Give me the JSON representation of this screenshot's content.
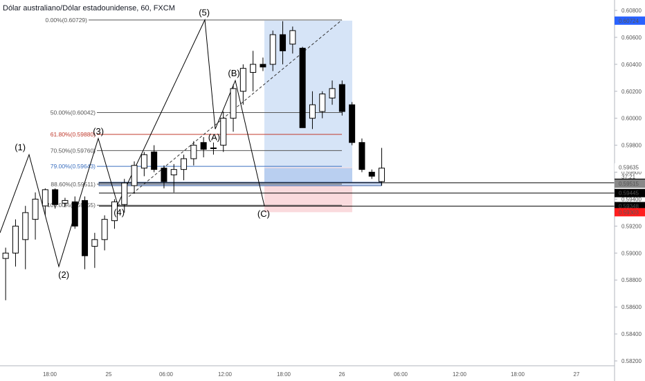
{
  "header": {
    "title": "Dólar australiano/Dólar estadounidense, 60, FXCM"
  },
  "colors": {
    "candle_up": "#ffffff",
    "candle_down": "#000000",
    "target_zone": "#d6e4f7",
    "stop_zone": "#fadadd",
    "price_blue": "#2962ff",
    "price_red": "#ff1e1e",
    "fib_red": "#c0392b",
    "fib_blue": "#3a6fbf"
  },
  "chart_data": {
    "type": "candlestick",
    "title": "Dólar australiano/Dólar estadounidense, 60, FXCM",
    "ylim": [
      0.5815,
      0.6085
    ],
    "price_ticks": [
      "0.60800",
      "0.60600",
      "0.60400",
      "0.60200",
      "0.60000",
      "0.59800",
      "0.59600",
      "0.59400",
      "0.59200",
      "0.59000",
      "0.58800",
      "0.58600",
      "0.58400",
      "0.58200"
    ],
    "price_tick_values": [
      0.608,
      0.606,
      0.604,
      0.602,
      0.6,
      0.598,
      0.596,
      0.594,
      0.592,
      0.59,
      0.588,
      0.586,
      0.584,
      0.582
    ],
    "time_ticks": [
      "18:00",
      "25",
      "06:00",
      "12:00",
      "18:00",
      "26",
      "06:00",
      "12:00",
      "18:00",
      "27"
    ],
    "candles": [
      {
        "o": 0.5896,
        "h": 0.5904,
        "l": 0.5865,
        "c": 0.59
      },
      {
        "o": 0.59,
        "h": 0.5925,
        "l": 0.589,
        "c": 0.592
      },
      {
        "o": 0.591,
        "h": 0.5935,
        "l": 0.5888,
        "c": 0.593
      },
      {
        "o": 0.5925,
        "h": 0.5945,
        "l": 0.591,
        "c": 0.594
      },
      {
        "o": 0.5935,
        "h": 0.5948,
        "l": 0.5928,
        "c": 0.5947
      },
      {
        "o": 0.5947,
        "h": 0.5948,
        "l": 0.5933,
        "c": 0.5936
      },
      {
        "o": 0.5937,
        "h": 0.5941,
        "l": 0.5934,
        "c": 0.5939
      },
      {
        "o": 0.5938,
        "h": 0.5942,
        "l": 0.5918,
        "c": 0.592
      },
      {
        "o": 0.5939,
        "h": 0.5942,
        "l": 0.5888,
        "c": 0.5898
      },
      {
        "o": 0.5905,
        "h": 0.5915,
        "l": 0.5889,
        "c": 0.591
      },
      {
        "o": 0.591,
        "h": 0.5928,
        "l": 0.5902,
        "c": 0.5925
      },
      {
        "o": 0.5924,
        "h": 0.594,
        "l": 0.5918,
        "c": 0.5938
      },
      {
        "o": 0.5936,
        "h": 0.5955,
        "l": 0.593,
        "c": 0.5952
      },
      {
        "o": 0.595,
        "h": 0.5968,
        "l": 0.5944,
        "c": 0.5965
      },
      {
        "o": 0.5963,
        "h": 0.5975,
        "l": 0.5957,
        "c": 0.5973
      },
      {
        "o": 0.5975,
        "h": 0.598,
        "l": 0.596,
        "c": 0.5962
      },
      {
        "o": 0.5963,
        "h": 0.5965,
        "l": 0.5948,
        "c": 0.5953
      },
      {
        "o": 0.5958,
        "h": 0.5966,
        "l": 0.5945,
        "c": 0.5962
      },
      {
        "o": 0.5962,
        "h": 0.5973,
        "l": 0.5954,
        "c": 0.597
      },
      {
        "o": 0.597,
        "h": 0.5983,
        "l": 0.5965,
        "c": 0.598
      },
      {
        "o": 0.5982,
        "h": 0.5986,
        "l": 0.5971,
        "c": 0.5977
      },
      {
        "o": 0.5978,
        "h": 0.5982,
        "l": 0.5973,
        "c": 0.5978
      },
      {
        "o": 0.598,
        "h": 0.6005,
        "l": 0.5975,
        "c": 0.6
      },
      {
        "o": 0.6,
        "h": 0.6025,
        "l": 0.599,
        "c": 0.6022
      },
      {
        "o": 0.602,
        "h": 0.604,
        "l": 0.601,
        "c": 0.6037
      },
      {
        "o": 0.6034,
        "h": 0.605,
        "l": 0.602,
        "c": 0.604
      },
      {
        "o": 0.604,
        "h": 0.6045,
        "l": 0.6035,
        "c": 0.6038
      },
      {
        "o": 0.604,
        "h": 0.6065,
        "l": 0.6035,
        "c": 0.6062
      },
      {
        "o": 0.6062,
        "h": 0.6072,
        "l": 0.604,
        "c": 0.605
      },
      {
        "o": 0.6055,
        "h": 0.6068,
        "l": 0.6048,
        "c": 0.6065
      },
      {
        "o": 0.6052,
        "h": 0.6053,
        "l": 0.5995,
        "c": 0.5993
      },
      {
        "o": 0.6,
        "h": 0.602,
        "l": 0.5992,
        "c": 0.601
      },
      {
        "o": 0.6005,
        "h": 0.602,
        "l": 0.6,
        "c": 0.6018
      },
      {
        "o": 0.6015,
        "h": 0.6028,
        "l": 0.601,
        "c": 0.6022
      },
      {
        "o": 0.6025,
        "h": 0.6028,
        "l": 0.6002,
        "c": 0.6005
      },
      {
        "o": 0.601,
        "h": 0.6012,
        "l": 0.598,
        "c": 0.5982
      },
      {
        "o": 0.5982,
        "h": 0.5985,
        "l": 0.596,
        "c": 0.5962
      },
      {
        "o": 0.596,
        "h": 0.5962,
        "l": 0.5955,
        "c": 0.5957
      },
      {
        "o": 0.5953,
        "h": 0.5978,
        "l": 0.595,
        "c": 0.5963
      }
    ],
    "fib_levels": [
      {
        "label": "0.00%(0.60729)",
        "value": 0.60729,
        "color": "#555555"
      },
      {
        "label": "50.00%(0.60042)",
        "value": 0.60042,
        "color": "#555555"
      },
      {
        "label": "61.80%(0.59880)",
        "value": 0.5988,
        "color": "#c0392b"
      },
      {
        "label": "70.50%(0.59760)",
        "value": 0.5976,
        "color": "#555555"
      },
      {
        "label": "79.00%(0.59643)",
        "value": 0.59643,
        "color": "#3a6fbf"
      },
      {
        "label": "88.60%(0.59511)",
        "value": 0.59511,
        "color": "#555555"
      },
      {
        "label": "100.00%(0.59355)",
        "value": 0.59355,
        "color": "#555555"
      }
    ],
    "wave_labels": [
      {
        "label": "(1)",
        "bar": 1.4,
        "price": 0.5973,
        "pos": "above"
      },
      {
        "label": "(2)",
        "bar": 5.8,
        "price": 0.589,
        "pos": "below"
      },
      {
        "label": "(3)",
        "bar": 9.3,
        "price": 0.5985,
        "pos": "above"
      },
      {
        "label": "(4)",
        "bar": 11.4,
        "price": 0.5936,
        "pos": "below"
      },
      {
        "label": "(5)",
        "bar": 20.0,
        "price": 0.6073,
        "pos": "above"
      },
      {
        "label": "(A)",
        "bar": 21.0,
        "price": 0.5992,
        "pos": "below"
      },
      {
        "label": "(B)",
        "bar": 23.0,
        "price": 0.6028,
        "pos": "above"
      },
      {
        "label": "(C)",
        "bar": 26.0,
        "price": 0.5935,
        "pos": "below"
      }
    ],
    "price_badges": [
      {
        "label": "0.60724",
        "value": 0.60724,
        "bg": "#2962ff",
        "fg": "#ffffff"
      },
      {
        "label": "0.59635",
        "value": 0.59635,
        "bg": "#ffffff",
        "fg": "#131722"
      },
      {
        "label": "37:21",
        "value": 0.5957,
        "bg": "#ffffff",
        "fg": "#131722"
      },
      {
        "label": "0.59521",
        "value": 0.59521,
        "bg": "#000000",
        "fg": "#ffffff"
      },
      {
        "label": "0.59515",
        "value": 0.59515,
        "bg": "#888888",
        "fg": "#ffffff"
      },
      {
        "label": "0.59445",
        "value": 0.59445,
        "bg": "#000000",
        "fg": "#ffffff"
      },
      {
        "label": "0.59348",
        "value": 0.59348,
        "bg": "#000000",
        "fg": "#ffffff"
      },
      {
        "label": "0.59303",
        "value": 0.59303,
        "bg": "#ff1e1e",
        "fg": "#ffffff"
      }
    ],
    "position": {
      "entry": 0.59635,
      "target": 0.60724,
      "stop": 0.59303
    }
  }
}
